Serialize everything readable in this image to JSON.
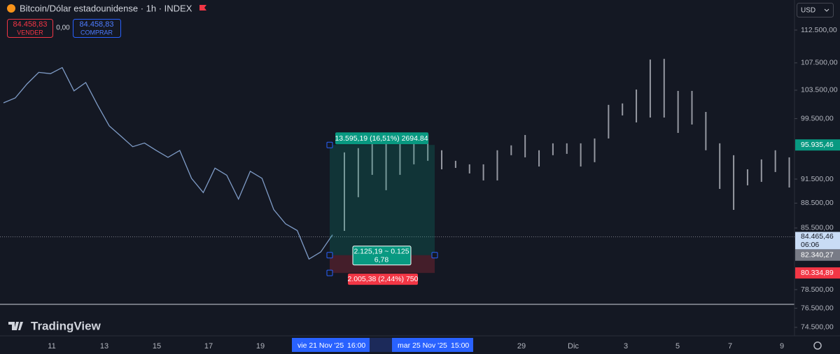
{
  "header": {
    "symbol": "Bitcoin/Dólar estadounidense · 1h · INDEX",
    "sell": {
      "price": "84.458,83",
      "label": "VENDER"
    },
    "spread": "0,00",
    "buy": {
      "price": "84.458,83",
      "label": "COMPRAR"
    },
    "currency": "USD"
  },
  "price_axis": {
    "scale": "log",
    "range": [
      73630,
      117290
    ],
    "ticks": [
      {
        "value": 112500,
        "label": "112.500,00"
      },
      {
        "value": 107500,
        "label": "107.500,00"
      },
      {
        "value": 103500,
        "label": "103.500,00"
      },
      {
        "value": 99500,
        "label": "99.500,00"
      },
      {
        "value": 91500,
        "label": "91.500,00"
      },
      {
        "value": 88500,
        "label": "88.500,00"
      },
      {
        "value": 85500,
        "label": "85.500,00"
      },
      {
        "value": 78500,
        "label": "78.500,00"
      },
      {
        "value": 76500,
        "label": "76.500,00"
      },
      {
        "value": 74500,
        "label": "74.500,00"
      }
    ]
  },
  "price_markers": {
    "current": {
      "value": 84465.46,
      "label": "84.465,46",
      "countdown": "06:06"
    },
    "target": {
      "value": 95935.46,
      "label": "95.935,46"
    },
    "entry": {
      "value": 82340.27,
      "label": "82.340,27"
    },
    "stop": {
      "value": 80334.89,
      "label": "80.334,89"
    }
  },
  "position": {
    "target_label": "13.595,19 (16,51%) 2694.84",
    "center_label": [
      "2.125,19 ~ 0.125",
      "6,78"
    ],
    "stop_label": "2.005,38 (2,44%) 750"
  },
  "time_axis": {
    "labels": [
      "11",
      "13",
      "15",
      "17",
      "19",
      "29",
      "Dic",
      "3",
      "5",
      "7",
      "9"
    ],
    "cursor_start": {
      "date": "vie 21 Nov '25",
      "time": "16:00"
    },
    "cursor_end": {
      "date": "mar 25 Nov '25",
      "time": "15:00"
    }
  },
  "history": [
    101700,
    102400,
    104400,
    106100,
    105900,
    106800,
    103400,
    104600,
    101400,
    98500,
    97100,
    95700,
    96200,
    95200,
    94300,
    95200,
    91600,
    89800,
    92900,
    92000,
    89000,
    92500,
    91600,
    87700,
    86000,
    85200,
    81900,
    82700,
    84700
  ],
  "projection": [
    {
      "high": 94950,
      "low": 85160
    },
    {
      "high": 95510,
      "low": 89230
    },
    {
      "high": 96150,
      "low": 92040
    },
    {
      "high": 96610,
      "low": 90100
    },
    {
      "high": 97080,
      "low": 92040
    },
    {
      "high": 96610,
      "low": 93390
    },
    {
      "high": 97360,
      "low": 93850
    },
    {
      "high": 95230,
      "low": 92750
    },
    {
      "high": 93850,
      "low": 92930
    },
    {
      "high": 93390,
      "low": 92220
    },
    {
      "high": 93390,
      "low": 91330
    },
    {
      "high": 95230,
      "low": 91330
    },
    {
      "high": 95880,
      "low": 94580
    },
    {
      "high": 97270,
      "low": 94300
    },
    {
      "high": 95230,
      "low": 93110
    },
    {
      "high": 96150,
      "low": 94580
    },
    {
      "high": 96150,
      "low": 94760
    },
    {
      "high": 96150,
      "low": 93110
    },
    {
      "high": 96800,
      "low": 93670
    },
    {
      "high": 101420,
      "low": 96800
    },
    {
      "high": 101620,
      "low": 99940
    },
    {
      "high": 103600,
      "low": 98980
    },
    {
      "high": 108000,
      "low": 99650
    },
    {
      "high": 108100,
      "low": 99650
    },
    {
      "high": 103400,
      "low": 97550
    },
    {
      "high": 103400,
      "low": 98690
    },
    {
      "high": 100430,
      "low": 95230
    },
    {
      "high": 96150,
      "low": 90270
    },
    {
      "high": 94580,
      "low": 87680
    },
    {
      "high": 92750,
      "low": 90710
    },
    {
      "high": 94030,
      "low": 91150
    },
    {
      "high": 95230,
      "low": 92400
    },
    {
      "high": 94300,
      "low": 90440
    }
  ],
  "brand": "TradingView"
}
